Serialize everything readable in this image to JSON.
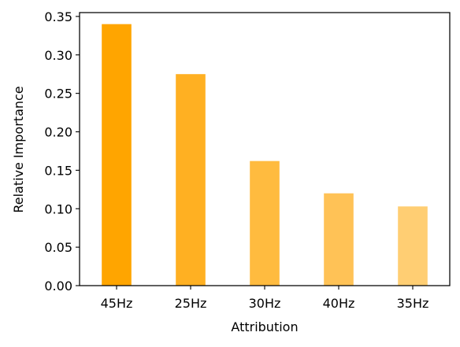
{
  "chart_data": {
    "type": "bar",
    "title": "",
    "xlabel": "Attribution",
    "ylabel": "Relative Importance",
    "categories": [
      "45Hz",
      "25Hz",
      "30Hz",
      "40Hz",
      "35Hz"
    ],
    "values": [
      0.34,
      0.275,
      0.162,
      0.12,
      0.103
    ],
    "bar_colors": [
      "#ffa500",
      "#ffb022",
      "#ffbb3f",
      "#ffc256",
      "#ffce73"
    ],
    "ylim": [
      0,
      0.355
    ],
    "yticks": [
      "0.00",
      "0.05",
      "0.10",
      "0.15",
      "0.20",
      "0.25",
      "0.30",
      "0.35"
    ],
    "grid": false,
    "legend": false
  }
}
